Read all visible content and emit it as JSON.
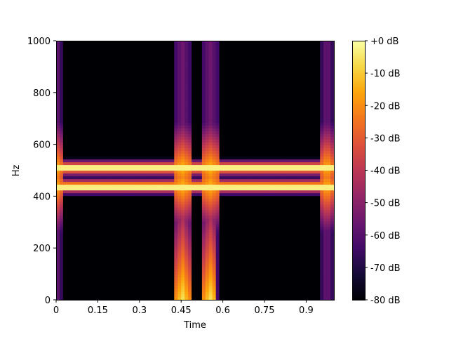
{
  "chart_data": {
    "type": "heatmap",
    "title": "",
    "xlabel": "Time",
    "ylabel": "Hz",
    "xlim": [
      0,
      1.0
    ],
    "ylim": [
      0,
      1000
    ],
    "xticks": [
      0,
      0.15,
      0.3,
      0.45,
      0.6,
      0.75,
      0.9
    ],
    "xtick_labels": [
      "0",
      "0.15",
      "0.3",
      "0.45",
      "0.6",
      "0.75",
      "0.9"
    ],
    "yticks": [
      0,
      200,
      400,
      600,
      800,
      1000
    ],
    "ytick_labels": [
      "0",
      "200",
      "400",
      "600",
      "800",
      "1000"
    ],
    "colormap": "inferno",
    "colorbar": {
      "min_db": -80,
      "max_db": 0,
      "ticks": [
        0,
        -10,
        -20,
        -30,
        -40,
        -50,
        -60,
        -70,
        -80
      ],
      "tick_labels": [
        "+0 dB",
        "-10 dB",
        "-20 dB",
        "-30 dB",
        "-40 dB",
        "-50 dB",
        "-60 dB",
        "-70 dB",
        "-80 dB"
      ]
    },
    "grid": false,
    "features": {
      "tones_hz": [
        440,
        510
      ],
      "tone_peak_db": -3,
      "clicks": [
        {
          "time": 0.0,
          "width": 0.04
        },
        {
          "time": 0.455,
          "width": 0.07
        },
        {
          "time": 0.555,
          "width": 0.07
        },
        {
          "time": 0.975,
          "width": 0.04
        }
      ],
      "click_peak_db": -55,
      "low_freq_energy_window": [
        0.42,
        0.58
      ]
    }
  }
}
